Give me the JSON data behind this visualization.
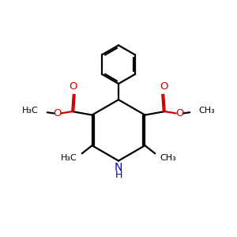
{
  "bg_color": "#ffffff",
  "bond_color": "#000000",
  "N_color": "#0000cc",
  "O_color": "#cc0000",
  "lw": 1.6,
  "figsize": [
    3.0,
    3.0
  ],
  "dpi": 100,
  "xlim": [
    0,
    10
  ],
  "ylim": [
    0,
    10
  ]
}
